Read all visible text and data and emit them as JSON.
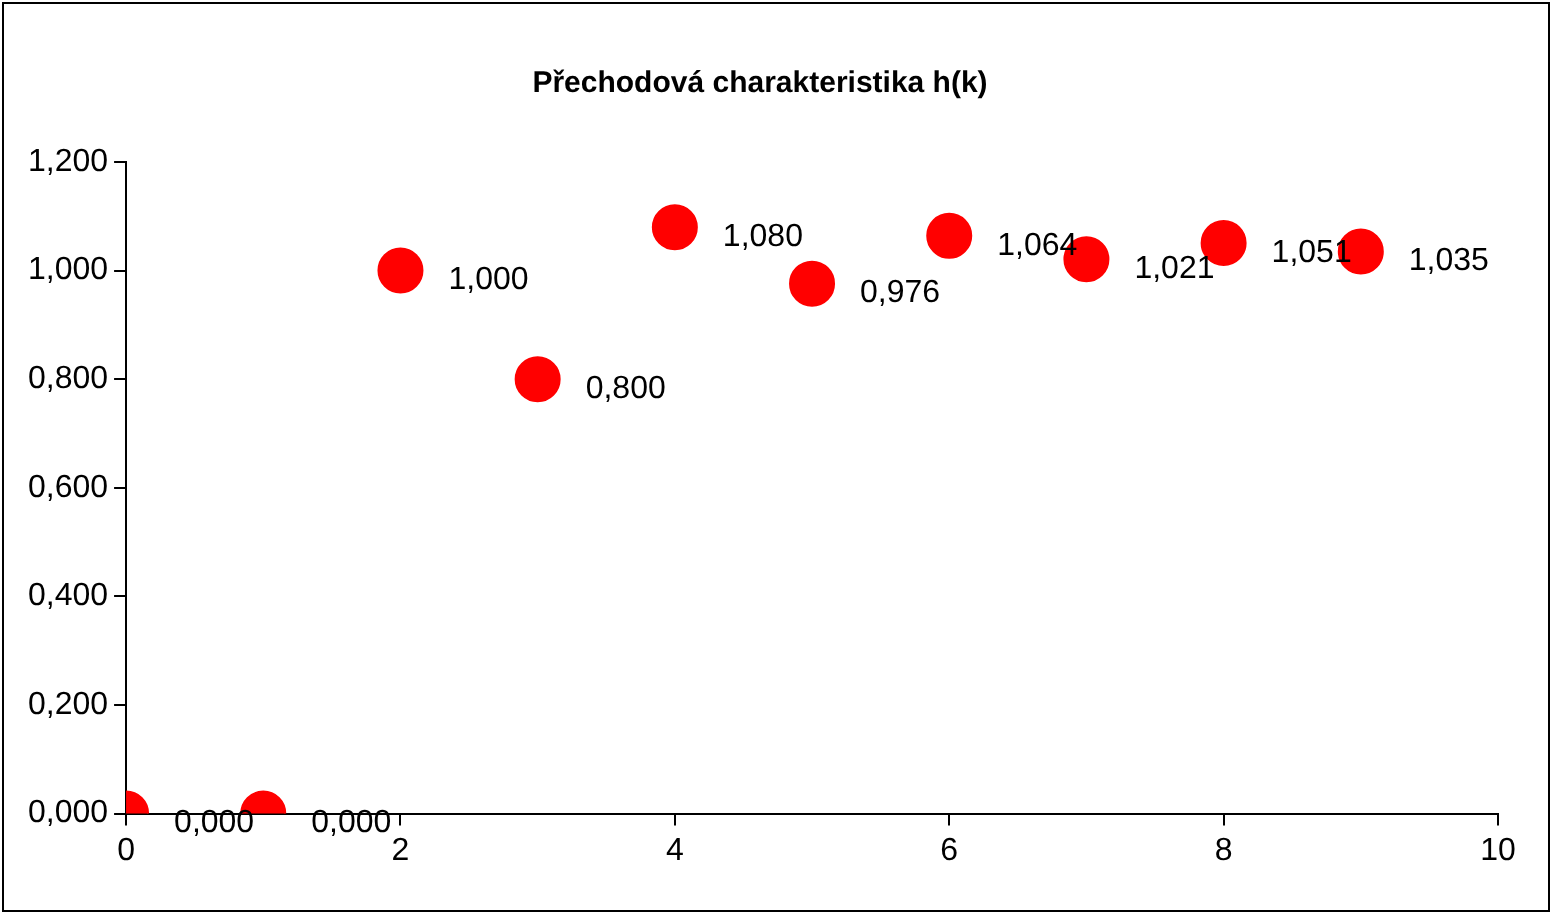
{
  "chart_data": {
    "type": "scatter",
    "title": "Přechodová charakteristika h(k)",
    "x": [
      0,
      1,
      2,
      3,
      4,
      5,
      6,
      7,
      8,
      9
    ],
    "series": [
      {
        "color": "#ff0000",
        "values": [
          0,
          0,
          1,
          0.8,
          1.08,
          0.976,
          1.064,
          1.021,
          1.051,
          1.035
        ],
        "value_labels": [
          "0,000",
          "0,000",
          "1,000",
          "0,800",
          "1,080",
          "0,976",
          "1,064",
          "1,021",
          "1,051",
          "1,035"
        ]
      }
    ],
    "xlim": [
      0,
      10
    ],
    "xticks": [
      0,
      2,
      4,
      6,
      8,
      10
    ],
    "ylim": [
      0,
      1.2
    ],
    "yticks": [
      {
        "value": 0,
        "label": "0,000"
      },
      {
        "value": 0.2,
        "label": "0,200"
      },
      {
        "value": 0.4,
        "label": "0,400"
      },
      {
        "value": 0.6,
        "label": "0,600"
      },
      {
        "value": 0.8,
        "label": "0,800"
      },
      {
        "value": 1,
        "label": "1,000"
      },
      {
        "value": 1.2,
        "label": "1,200"
      }
    ],
    "grid": false,
    "legend": false,
    "marker": "circle"
  }
}
